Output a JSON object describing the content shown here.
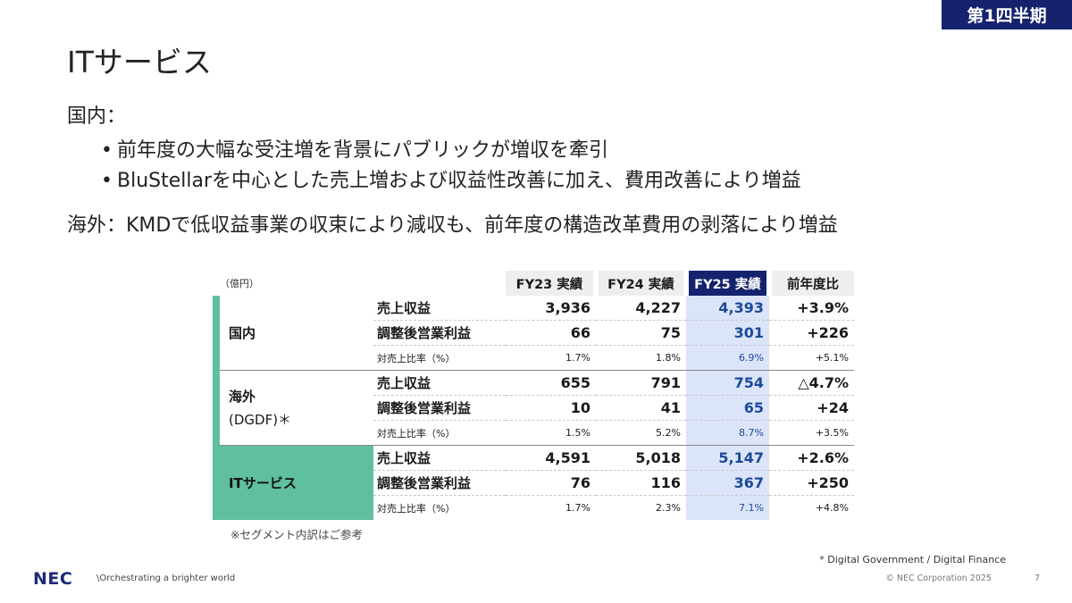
{
  "badge": "第1四半期",
  "title": "ITサービス",
  "domestic": {
    "heading": "国内：",
    "bullets": [
      "前年度の大幅な受注増を背景にパブリックが増収を牽引",
      "BluStellarを中心とした売上増および収益性改善に加え、費用改善により増益"
    ]
  },
  "overseas": {
    "text": "海外：KMDで低収益事業の収束により減収も、前年度の構造改革費用の剥落により増益"
  },
  "table": {
    "unit": "（億円）",
    "columns": [
      "FY23 実績",
      "FY24 実績",
      "FY25 実績",
      "前年度比"
    ],
    "groups": [
      {
        "name": "国内",
        "rows": [
          {
            "item": "売上収益",
            "values": [
              "3,936",
              "4,227",
              "4,393",
              "+3.9%"
            ]
          },
          {
            "item": "調整後営業利益",
            "values": [
              "66",
              "75",
              "301",
              "+226"
            ]
          },
          {
            "item": "対売上比率（%）",
            "values": [
              "1.7%",
              "1.8%",
              "6.9%",
              "+5.1%"
            ]
          }
        ]
      },
      {
        "name": "海外",
        "name2": "(DGDF)＊",
        "rows": [
          {
            "item": "売上収益",
            "values": [
              "655",
              "791",
              "754",
              "△4.7%"
            ]
          },
          {
            "item": "調整後営業利益",
            "values": [
              "10",
              "41",
              "65",
              "+24"
            ]
          },
          {
            "item": "対売上比率（%）",
            "values": [
              "1.5%",
              "5.2%",
              "8.7%",
              "+3.5%"
            ]
          }
        ]
      },
      {
        "name": "ITサービス",
        "rows": [
          {
            "item": "売上収益",
            "values": [
              "4,591",
              "5,018",
              "5,147",
              "+2.6%"
            ]
          },
          {
            "item": "調整後営業利益",
            "values": [
              "76",
              "116",
              "367",
              "+250"
            ]
          },
          {
            "item": "対売上比率（%）",
            "values": [
              "1.7%",
              "2.3%",
              "7.1%",
              "+4.8%"
            ]
          }
        ]
      }
    ]
  },
  "note": "※セグメント内訳はご参考",
  "footnote": "* Digital Government / Digital Finance",
  "footer": {
    "logo": "NEC",
    "tagline": "\\Orchestrating a brighter world",
    "copyright": "© NEC Corporation 2025",
    "page": "7"
  },
  "colors": {
    "brand_navy": "#15236e",
    "segment_green": "#5fbfa0",
    "current_col_bg": "#dbe4f8",
    "current_col_text": "#1d4a9a"
  }
}
